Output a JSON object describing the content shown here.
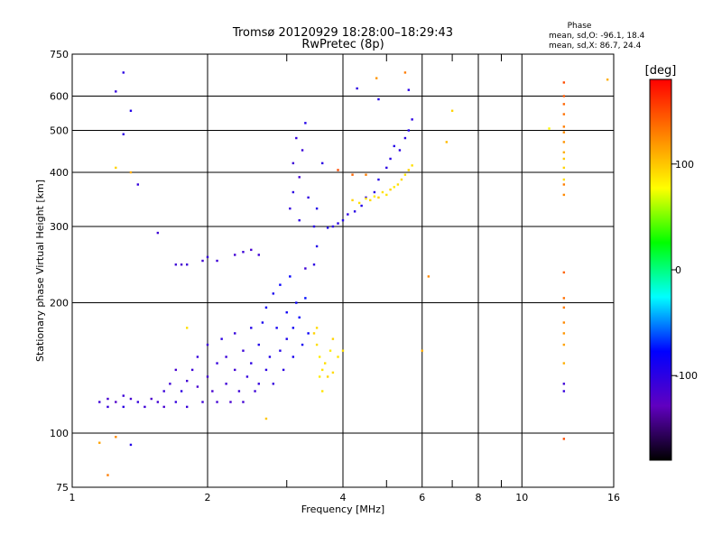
{
  "chart_data": {
    "type": "scatter",
    "title": "Tromsø 20120929 18:28:00–18:29:43",
    "subtitle": "RwPretec (8p)",
    "xlabel": "Frequency [MHz]",
    "ylabel": "Stationary phase Virtual Height [km]",
    "x_scale": "log",
    "y_scale": "log",
    "xlim": [
      1,
      16
    ],
    "ylim": [
      75,
      750
    ],
    "x_ticks": [
      "1",
      "2",
      "4",
      "6",
      "8",
      "10",
      "16"
    ],
    "x_tick_values": [
      1,
      2,
      4,
      6,
      8,
      10,
      16
    ],
    "x_minor_values": [
      3,
      5,
      7,
      9
    ],
    "y_ticks": [
      "75",
      "100",
      "200",
      "300",
      "400",
      "500",
      "600",
      "750"
    ],
    "y_tick_values": [
      75,
      100,
      200,
      300,
      400,
      500,
      600,
      750
    ],
    "grid": true,
    "phase_info": {
      "heading": "Phase",
      "line_o": "mean, sd,O: -96.1, 18.4",
      "line_x": "mean, sd,X:  86.7, 24.4"
    },
    "colorbar": {
      "label": "[deg]",
      "range": [
        -180,
        180
      ],
      "ticks": [
        "100",
        "0",
        "-100"
      ],
      "tick_values": [
        100,
        0,
        -100
      ],
      "colors": [
        "#ff0000",
        "#ff8000",
        "#ffff00",
        "#00ff00",
        "#00ffff",
        "#0000ff",
        "#6000c0",
        "#000000"
      ]
    },
    "series": [
      {
        "mode": "O",
        "points": [
          [
            1.15,
            118,
            -110
          ],
          [
            1.2,
            120,
            -115
          ],
          [
            1.2,
            115,
            -105
          ],
          [
            1.25,
            118,
            -120
          ],
          [
            1.3,
            122,
            -110
          ],
          [
            1.3,
            115,
            -100
          ],
          [
            1.35,
            120,
            -115
          ],
          [
            1.4,
            118,
            -105
          ],
          [
            1.45,
            115,
            -110
          ],
          [
            1.5,
            120,
            -118
          ],
          [
            1.55,
            118,
            -112
          ],
          [
            1.6,
            125,
            -108
          ],
          [
            1.6,
            115,
            -115
          ],
          [
            1.65,
            130,
            -110
          ],
          [
            1.7,
            118,
            -105
          ],
          [
            1.7,
            140,
            -115
          ],
          [
            1.75,
            125,
            -100
          ],
          [
            1.8,
            132,
            -112
          ],
          [
            1.8,
            115,
            -108
          ],
          [
            1.85,
            140,
            -110
          ],
          [
            1.9,
            128,
            -115
          ],
          [
            1.9,
            150,
            -105
          ],
          [
            1.95,
            118,
            -110
          ],
          [
            2.0,
            135,
            -112
          ],
          [
            2.0,
            160,
            -108
          ],
          [
            2.05,
            125,
            -115
          ],
          [
            2.1,
            145,
            -105
          ],
          [
            2.1,
            118,
            -112
          ],
          [
            2.15,
            165,
            -100
          ],
          [
            2.2,
            130,
            -110
          ],
          [
            2.2,
            150,
            -108
          ],
          [
            2.25,
            118,
            -115
          ],
          [
            2.3,
            140,
            -112
          ],
          [
            2.3,
            170,
            -105
          ],
          [
            2.35,
            125,
            -110
          ],
          [
            2.4,
            155,
            -108
          ],
          [
            2.4,
            118,
            -112
          ],
          [
            2.45,
            135,
            -105
          ],
          [
            2.5,
            145,
            -100
          ],
          [
            2.5,
            175,
            -95
          ],
          [
            2.55,
            125,
            -110
          ],
          [
            2.6,
            160,
            -95
          ],
          [
            2.6,
            130,
            -105
          ],
          [
            2.65,
            180,
            -90
          ],
          [
            2.7,
            140,
            -100
          ],
          [
            2.7,
            195,
            -85
          ],
          [
            2.75,
            150,
            -95
          ],
          [
            2.8,
            210,
            -90
          ],
          [
            2.8,
            130,
            -105
          ],
          [
            2.85,
            175,
            -88
          ],
          [
            2.9,
            155,
            -95
          ],
          [
            2.9,
            220,
            -80
          ],
          [
            2.95,
            140,
            -100
          ],
          [
            3.0,
            190,
            -85
          ],
          [
            3.0,
            165,
            -92
          ],
          [
            3.05,
            230,
            -78
          ],
          [
            3.1,
            175,
            -85
          ],
          [
            3.1,
            150,
            -90
          ],
          [
            3.15,
            200,
            -82
          ],
          [
            3.2,
            185,
            -80
          ],
          [
            3.25,
            160,
            -88
          ],
          [
            3.3,
            205,
            -75
          ],
          [
            3.35,
            170,
            -82
          ],
          [
            1.7,
            245,
            -110
          ],
          [
            1.75,
            245,
            -115
          ],
          [
            1.8,
            245,
            -108
          ],
          [
            1.95,
            250,
            -112
          ],
          [
            2.0,
            255,
            -105
          ],
          [
            2.1,
            250,
            -110
          ],
          [
            2.3,
            258,
            -112
          ],
          [
            2.4,
            262,
            -108
          ],
          [
            2.5,
            265,
            -115
          ],
          [
            2.6,
            258,
            -110
          ],
          [
            3.05,
            330,
            -105
          ],
          [
            3.1,
            360,
            -100
          ],
          [
            3.1,
            420,
            -110
          ],
          [
            3.15,
            480,
            -105
          ],
          [
            3.2,
            310,
            -100
          ],
          [
            3.2,
            390,
            -112
          ],
          [
            3.25,
            450,
            -108
          ],
          [
            3.3,
            520,
            -95
          ],
          [
            3.35,
            350,
            -102
          ],
          [
            3.45,
            300,
            -98
          ],
          [
            3.5,
            330,
            -95
          ],
          [
            3.6,
            420,
            -100
          ],
          [
            3.7,
            298,
            -95
          ],
          [
            3.8,
            300,
            -100
          ],
          [
            3.9,
            305,
            -98
          ],
          [
            4.0,
            310,
            -95
          ],
          [
            4.1,
            320,
            -100
          ],
          [
            4.25,
            325,
            -98
          ],
          [
            4.4,
            335,
            -95
          ],
          [
            4.5,
            350,
            -100
          ],
          [
            4.7,
            360,
            -98
          ],
          [
            4.8,
            385,
            -95
          ],
          [
            5.0,
            410,
            -100
          ],
          [
            5.1,
            430,
            -98
          ],
          [
            5.2,
            460,
            -95
          ],
          [
            5.35,
            450,
            -100
          ],
          [
            5.5,
            480,
            -98
          ],
          [
            5.6,
            500,
            -95
          ],
          [
            5.7,
            530,
            -100
          ],
          [
            5.6,
            620,
            -98
          ],
          [
            4.8,
            590,
            -95
          ],
          [
            4.3,
            625,
            -100
          ],
          [
            1.25,
            615,
            -105
          ],
          [
            1.3,
            680,
            -100
          ],
          [
            1.35,
            555,
            -95
          ],
          [
            1.3,
            490,
            -100
          ],
          [
            1.4,
            375,
            -105
          ],
          [
            1.55,
            290,
            -110
          ],
          [
            1.35,
            94,
            -95
          ],
          [
            3.45,
            245,
            -100
          ],
          [
            3.5,
            270,
            -95
          ],
          [
            3.3,
            240,
            -110
          ]
        ]
      },
      {
        "mode": "X",
        "points": [
          [
            3.45,
            170,
            95
          ],
          [
            3.5,
            160,
            90
          ],
          [
            3.55,
            150,
            85
          ],
          [
            3.6,
            140,
            88
          ],
          [
            3.5,
            175,
            92
          ],
          [
            3.65,
            145,
            90
          ],
          [
            3.7,
            135,
            95
          ],
          [
            3.75,
            155,
            85
          ],
          [
            3.8,
            138,
            92
          ],
          [
            3.9,
            150,
            88
          ],
          [
            4.0,
            155,
            90
          ],
          [
            3.55,
            135,
            85
          ],
          [
            3.6,
            125,
            88
          ],
          [
            3.8,
            165,
            95
          ],
          [
            4.2,
            345,
            95
          ],
          [
            4.35,
            340,
            90
          ],
          [
            4.5,
            348,
            88
          ],
          [
            4.6,
            345,
            92
          ],
          [
            4.7,
            352,
            85
          ],
          [
            4.8,
            350,
            95
          ],
          [
            4.9,
            360,
            90
          ],
          [
            5.0,
            355,
            88
          ],
          [
            5.1,
            365,
            95
          ],
          [
            5.2,
            370,
            85
          ],
          [
            5.3,
            375,
            90
          ],
          [
            5.4,
            385,
            92
          ],
          [
            5.5,
            395,
            88
          ],
          [
            5.6,
            405,
            95
          ],
          [
            5.7,
            415,
            90
          ],
          [
            5.5,
            680,
            130
          ],
          [
            4.75,
            660,
            120
          ],
          [
            1.25,
            98,
            125
          ],
          [
            1.2,
            80,
            130
          ],
          [
            1.15,
            95,
            115
          ],
          [
            1.35,
            400,
            110
          ],
          [
            1.25,
            410,
            95
          ],
          [
            2.7,
            108,
            100
          ],
          [
            1.8,
            175,
            90
          ],
          [
            6.2,
            230,
            125
          ],
          [
            6.0,
            155,
            110
          ],
          [
            6.8,
            470,
            105
          ],
          [
            7.0,
            555,
            95
          ],
          [
            11.5,
            505,
            80
          ],
          [
            15.5,
            655,
            110
          ],
          [
            4.5,
            395,
            130
          ],
          [
            4.2,
            395,
            140
          ],
          [
            3.9,
            405,
            150
          ]
        ]
      },
      {
        "mode": "column",
        "points": [
          [
            12.4,
            645,
            150
          ],
          [
            12.4,
            600,
            145
          ],
          [
            12.4,
            575,
            140
          ],
          [
            12.4,
            545,
            135
          ],
          [
            12.4,
            510,
            130
          ],
          [
            12.4,
            495,
            125
          ],
          [
            12.4,
            470,
            120
          ],
          [
            12.4,
            445,
            110
          ],
          [
            12.4,
            430,
            100
          ],
          [
            12.4,
            410,
            95
          ],
          [
            12.4,
            385,
            90
          ],
          [
            12.4,
            375,
            130
          ],
          [
            12.4,
            355,
            125
          ],
          [
            12.4,
            235,
            140
          ],
          [
            12.4,
            205,
            135
          ],
          [
            12.4,
            195,
            130
          ],
          [
            12.4,
            180,
            125
          ],
          [
            12.4,
            170,
            120
          ],
          [
            12.4,
            160,
            115
          ],
          [
            12.4,
            145,
            110
          ],
          [
            12.4,
            125,
            -105
          ],
          [
            12.4,
            130,
            -110
          ],
          [
            12.4,
            97,
            150
          ]
        ]
      }
    ]
  }
}
